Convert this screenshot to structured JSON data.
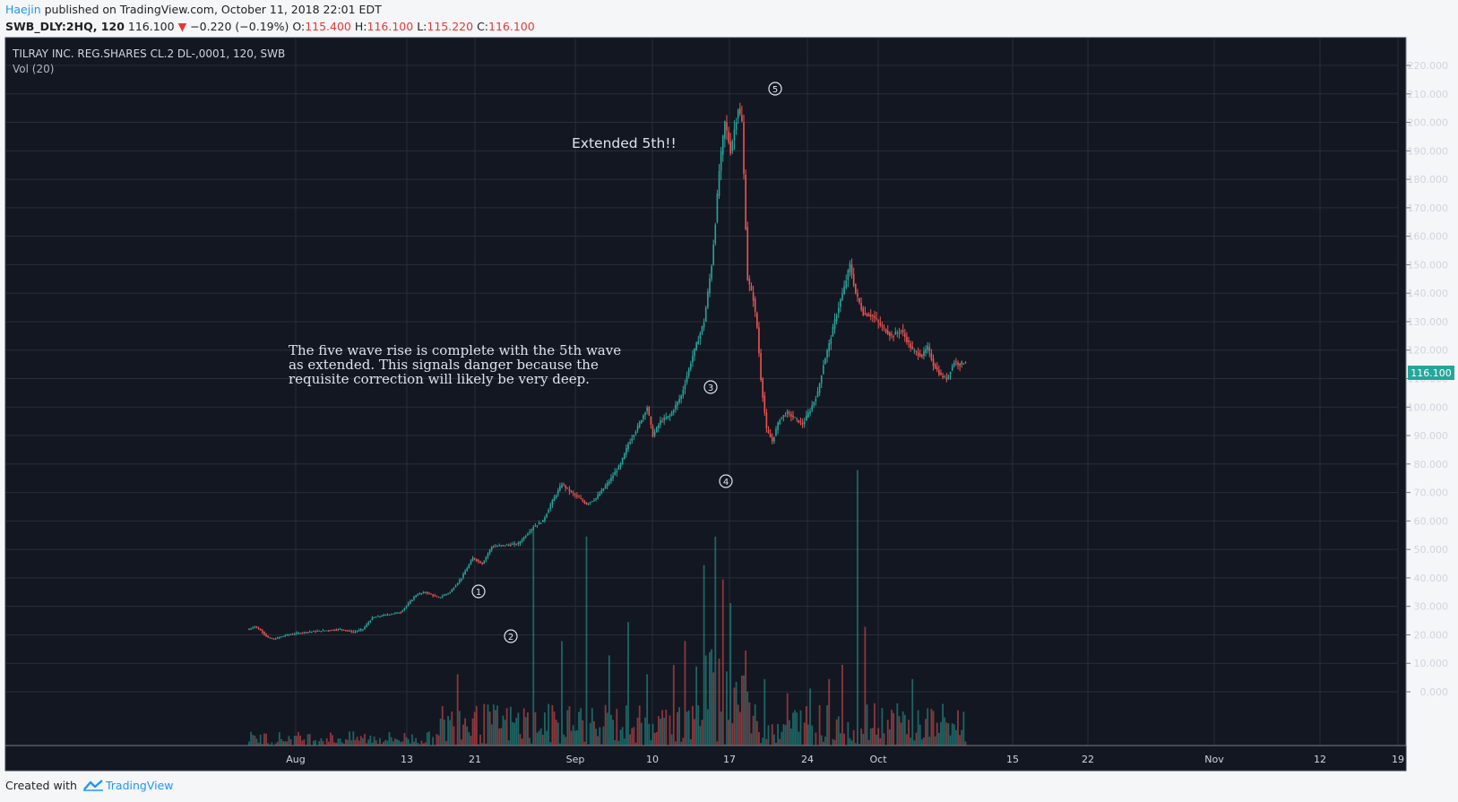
{
  "header": {
    "author": "Haejin",
    "published_text": "published on TradingView.com, October 11, 2018 22:01 EDT",
    "symbol": "SWB_DLY:2HQ, 120",
    "last": "116.100",
    "change": "−0.220 (−0.19%)",
    "o_label": "O:",
    "o_value": "115.400",
    "h_label": "H:",
    "h_value": "116.100",
    "l_label": "L:",
    "l_value": "115.220",
    "c_label": "C:",
    "c_value": "116.100"
  },
  "legend": {
    "title": "TILRAY INC. REG.SHARES CL.2 DL-,0001, 120, SWB",
    "volume": "Vol (20)"
  },
  "annotations": {
    "extended": "Extended 5th!!",
    "note_lines": [
      "The five wave rise is complete with the 5th wave",
      "as extended. This signals danger because the",
      "requisite correction will likely be very deep."
    ],
    "waves": [
      "1",
      "2",
      "3",
      "4",
      "5"
    ]
  },
  "footer": {
    "created_with": "Created with",
    "brand": "TradingView"
  },
  "colors": {
    "background": "#131722",
    "grid": "#2a2e39",
    "up": "#26a69a",
    "down": "#ef5350",
    "price_tag": "#26a69a",
    "text": "#d1d4dc"
  },
  "chart_data": {
    "type": "candlestick",
    "x_axis_labels": [
      "Aug",
      "13",
      "21",
      "Sep",
      "10",
      "17",
      "24",
      "Oct",
      "15",
      "22",
      "Nov",
      "12",
      "19"
    ],
    "y_ticks": [
      "220.000",
      "210.000",
      "200.000",
      "190.000",
      "180.000",
      "170.000",
      "160.000",
      "150.000",
      "140.000",
      "130.000",
      "120.000",
      "110.000",
      "100.000",
      "90.000",
      "80.000",
      "70.000",
      "60.000",
      "50.000",
      "40.000",
      "30.000",
      "20.000",
      "10.000",
      "0.000"
    ],
    "ylim": [
      -10,
      225
    ],
    "last_price": "116.100",
    "price_path": [
      [
        0,
        22
      ],
      [
        3,
        23
      ],
      [
        7,
        21
      ],
      [
        10,
        19
      ],
      [
        13,
        18.5
      ],
      [
        20,
        20
      ],
      [
        30,
        21
      ],
      [
        40,
        21.5
      ],
      [
        48,
        22
      ],
      [
        55,
        21
      ],
      [
        60,
        22
      ],
      [
        65,
        26
      ],
      [
        72,
        27
      ],
      [
        80,
        28
      ],
      [
        88,
        34
      ],
      [
        93,
        35
      ],
      [
        100,
        33
      ],
      [
        106,
        35
      ],
      [
        112,
        40
      ],
      [
        118,
        47
      ],
      [
        123,
        45
      ],
      [
        128,
        51
      ],
      [
        135,
        51.5
      ],
      [
        142,
        52
      ],
      [
        150,
        58
      ],
      [
        155,
        60
      ],
      [
        160,
        67
      ],
      [
        165,
        73
      ],
      [
        170,
        70
      ],
      [
        174,
        68
      ],
      [
        178,
        66
      ],
      [
        183,
        68
      ],
      [
        190,
        74
      ],
      [
        196,
        80
      ],
      [
        200,
        87
      ],
      [
        205,
        93
      ],
      [
        210,
        100
      ],
      [
        213,
        90
      ],
      [
        217,
        95
      ],
      [
        222,
        97
      ],
      [
        228,
        104
      ],
      [
        234,
        118
      ],
      [
        240,
        130
      ],
      [
        244,
        150
      ],
      [
        246,
        165
      ],
      [
        248,
        183
      ],
      [
        251,
        200
      ],
      [
        254,
        190
      ],
      [
        258,
        205
      ],
      [
        260,
        200
      ],
      [
        263,
        145
      ],
      [
        266,
        138
      ],
      [
        268,
        128
      ],
      [
        270,
        110
      ],
      [
        273,
        92
      ],
      [
        276,
        88
      ],
      [
        280,
        96
      ],
      [
        284,
        98
      ],
      [
        288,
        96
      ],
      [
        292,
        94
      ],
      [
        296,
        99
      ],
      [
        300,
        105
      ],
      [
        303,
        115
      ],
      [
        306,
        122
      ],
      [
        310,
        133
      ],
      [
        314,
        142
      ],
      [
        317,
        150
      ],
      [
        320,
        140
      ],
      [
        324,
        133
      ],
      [
        329,
        132
      ],
      [
        334,
        128
      ],
      [
        339,
        125
      ],
      [
        344,
        127
      ],
      [
        350,
        120
      ],
      [
        355,
        118
      ],
      [
        358,
        121
      ],
      [
        361,
        115
      ],
      [
        365,
        111
      ],
      [
        368,
        110
      ],
      [
        372,
        116
      ],
      [
        375,
        115
      ],
      [
        378,
        116.1
      ]
    ],
    "volume_spikes": [
      [
        110,
        15
      ],
      [
        150,
        46
      ],
      [
        165,
        22
      ],
      [
        178,
        44
      ],
      [
        190,
        19
      ],
      [
        200,
        26
      ],
      [
        210,
        15
      ],
      [
        224,
        17
      ],
      [
        230,
        22
      ],
      [
        240,
        38
      ],
      [
        246,
        44
      ],
      [
        250,
        35
      ],
      [
        254,
        30
      ],
      [
        262,
        20
      ],
      [
        272,
        14
      ],
      [
        284,
        11
      ],
      [
        296,
        12
      ],
      [
        306,
        14
      ],
      [
        313,
        17
      ],
      [
        321,
        58
      ],
      [
        325,
        25
      ],
      [
        350,
        14
      ]
    ]
  }
}
